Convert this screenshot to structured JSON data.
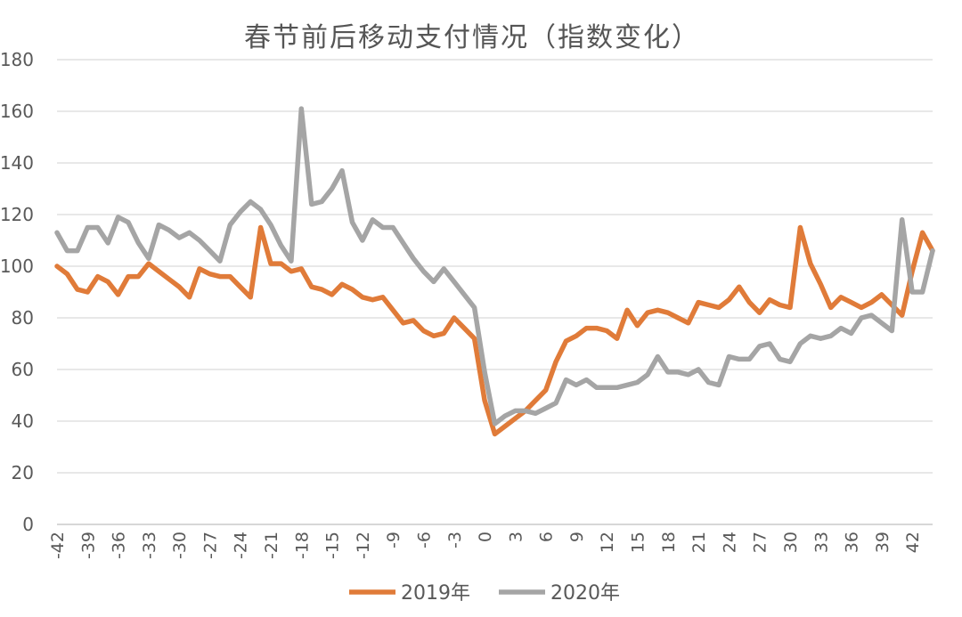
{
  "chart_data": {
    "type": "line",
    "title": "春节前后移动支付情况（指数变化）",
    "xlabel": "",
    "ylabel": "",
    "ylim": [
      0,
      180
    ],
    "y_ticks": [
      0,
      20,
      40,
      60,
      80,
      100,
      120,
      140,
      160,
      180
    ],
    "x": [
      -42,
      -41,
      -40,
      -39,
      -38,
      -37,
      -36,
      -35,
      -34,
      -33,
      -32,
      -31,
      -30,
      -29,
      -28,
      -27,
      -26,
      -25,
      -24,
      -23,
      -22,
      -21,
      -20,
      -19,
      -18,
      -17,
      -16,
      -15,
      -14,
      -13,
      -12,
      -11,
      -10,
      -9,
      -8,
      -7,
      -6,
      -5,
      -4,
      -3,
      -2,
      -1,
      0,
      1,
      2,
      3,
      4,
      5,
      6,
      7,
      8,
      9,
      10,
      11,
      12,
      13,
      14,
      15,
      16,
      17,
      18,
      19,
      20,
      21,
      22,
      23,
      24,
      25,
      26,
      27,
      28,
      29,
      30,
      31,
      32,
      33,
      34,
      35,
      36,
      37,
      38,
      39,
      40,
      41,
      42,
      43,
      44
    ],
    "x_tick_labels": [
      "-42",
      "-39",
      "-36",
      "-33",
      "-30",
      "-27",
      "-24",
      "-21",
      "-18",
      "-15",
      "-12",
      "-9",
      "-6",
      "-3",
      "0",
      "3",
      "6",
      "9",
      "12",
      "15",
      "18",
      "21",
      "24",
      "27",
      "30",
      "33",
      "36",
      "39",
      "42"
    ],
    "grid": true,
    "legend_position": "bottom",
    "series": [
      {
        "name": "2019年",
        "color": "#e07b39",
        "values": [
          100,
          97,
          91,
          90,
          96,
          94,
          89,
          96,
          96,
          101,
          98,
          95,
          92,
          88,
          99,
          97,
          96,
          96,
          92,
          88,
          115,
          101,
          101,
          98,
          99,
          92,
          91,
          89,
          93,
          91,
          88,
          87,
          88,
          83,
          78,
          79,
          75,
          73,
          74,
          80,
          76,
          72,
          48,
          35,
          38,
          41,
          44,
          48,
          52,
          63,
          71,
          73,
          76,
          76,
          75,
          72,
          83,
          77,
          82,
          83,
          82,
          80,
          78,
          86,
          85,
          84,
          87,
          92,
          86,
          82,
          87,
          85,
          84,
          115,
          101,
          93,
          84,
          88,
          86,
          84,
          86,
          89,
          85,
          81,
          98,
          113,
          106
        ]
      },
      {
        "name": "2020年",
        "color": "#a5a5a5",
        "values": [
          113,
          106,
          106,
          115,
          115,
          109,
          119,
          117,
          109,
          103,
          116,
          114,
          111,
          113,
          110,
          106,
          102,
          116,
          121,
          125,
          122,
          116,
          108,
          102,
          161,
          124,
          125,
          130,
          137,
          117,
          110,
          118,
          115,
          115,
          109,
          103,
          98,
          94,
          99,
          94,
          89,
          84,
          59,
          39,
          42,
          44,
          44,
          43,
          45,
          47,
          56,
          54,
          56,
          53,
          53,
          53,
          54,
          55,
          58,
          65,
          59,
          59,
          58,
          60,
          55,
          54,
          65,
          64,
          64,
          69,
          70,
          64,
          63,
          70,
          73,
          72,
          73,
          76,
          74,
          80,
          81,
          78,
          75,
          118,
          90,
          90,
          106
        ]
      }
    ]
  }
}
